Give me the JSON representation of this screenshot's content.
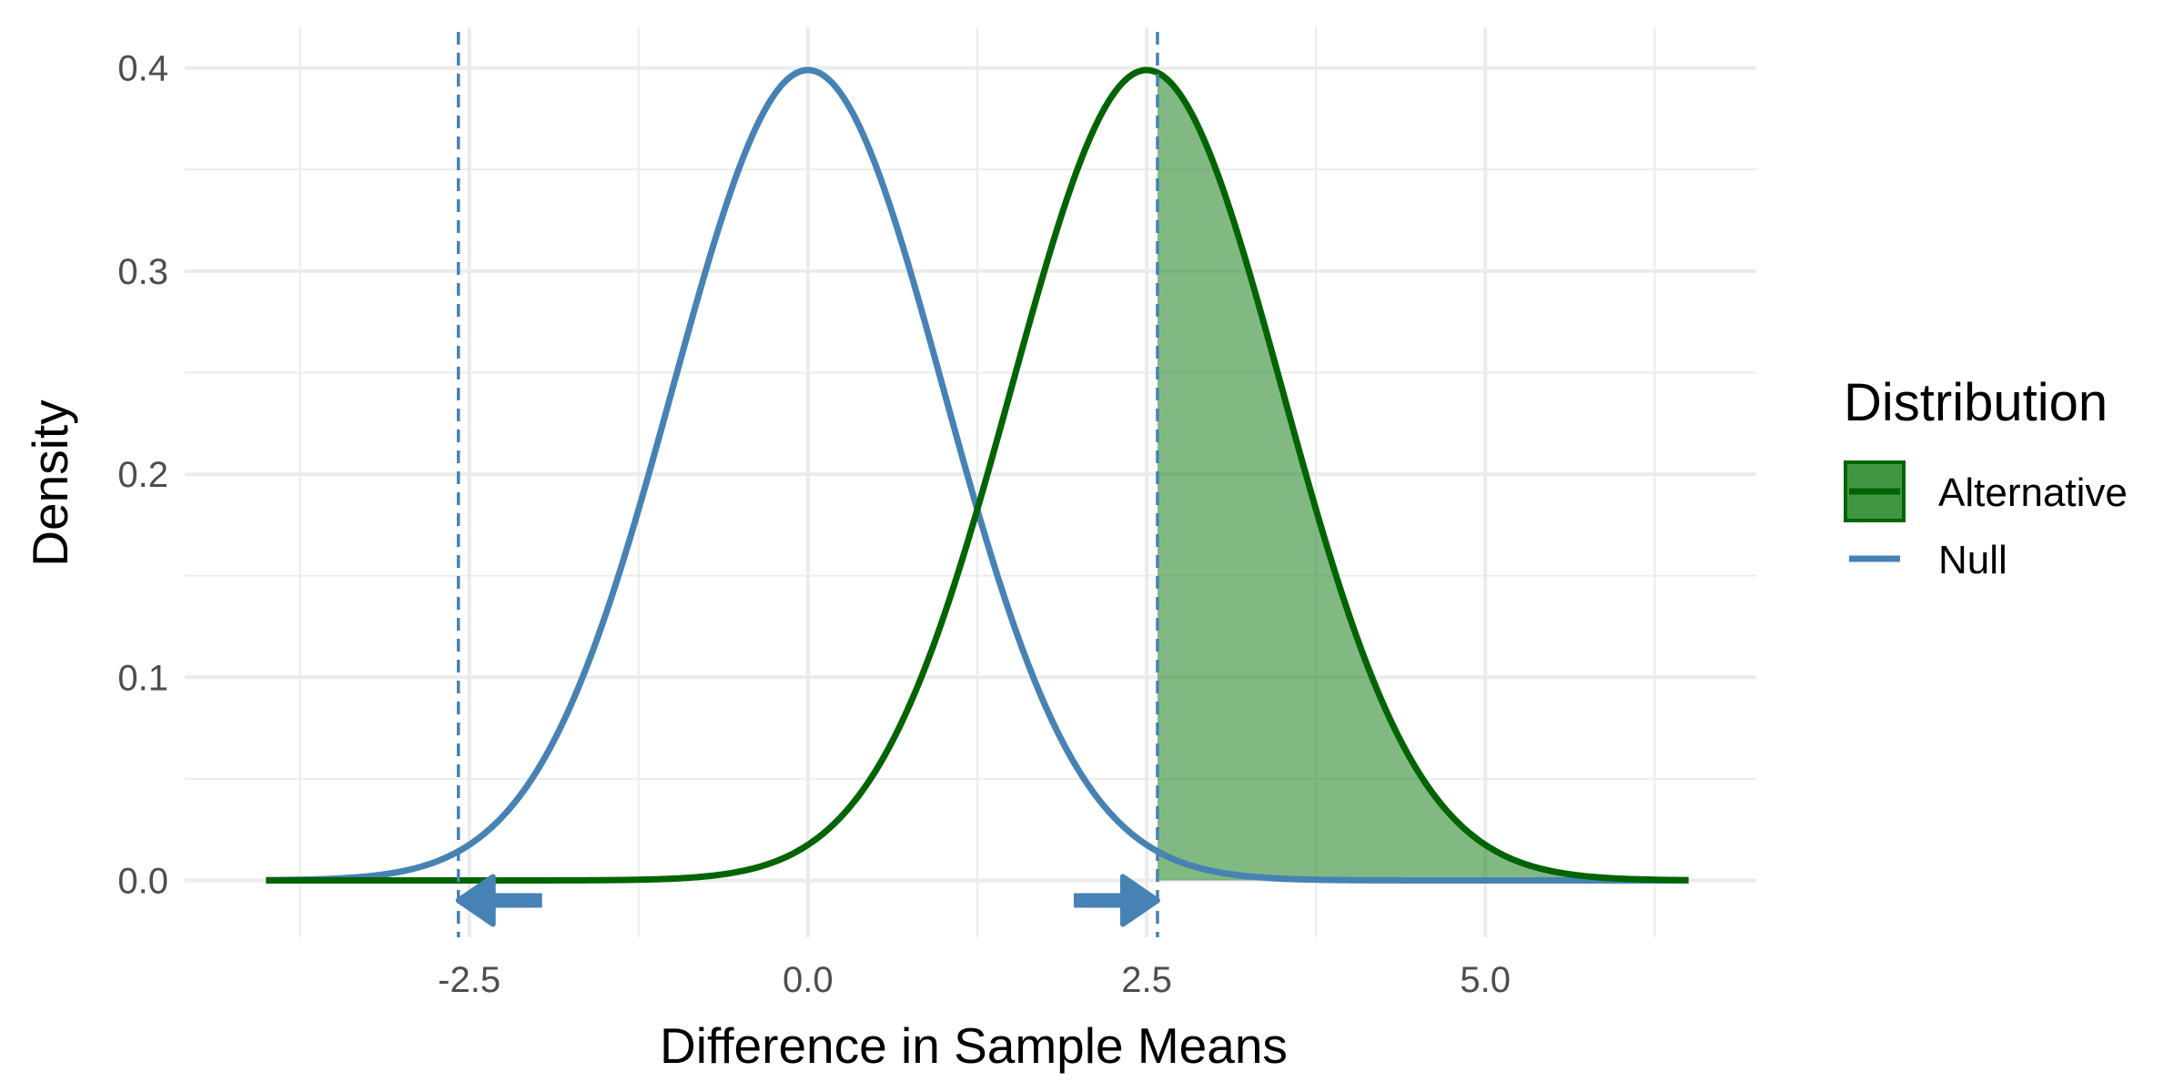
{
  "chart_data": {
    "type": "line",
    "title": "",
    "xlabel": "Difference in Sample Means",
    "ylabel": "Density",
    "xlim": [
      -4.6,
      7.0
    ],
    "ylim": [
      -0.028,
      0.42
    ],
    "x_ticks": [
      -2.5,
      0.0,
      2.5,
      5.0
    ],
    "x_tick_labels": [
      "-2.5",
      "0.0",
      "2.5",
      "5.0"
    ],
    "y_ticks": [
      0.0,
      0.1,
      0.2,
      0.3,
      0.4
    ],
    "y_tick_labels": [
      "0.0",
      "0.1",
      "0.2",
      "0.3",
      "0.4"
    ],
    "grid": true,
    "series": [
      {
        "name": "Null",
        "distribution": "normal",
        "mean": 0.0,
        "sd": 1.0,
        "x_range": [
          -4,
          6.5
        ],
        "color": "#4682B4"
      },
      {
        "name": "Alternative",
        "distribution": "normal",
        "mean": 2.5,
        "sd": 1.0,
        "x_range": [
          -4,
          6.5
        ],
        "color": "#006400"
      }
    ],
    "critical_values": [
      -2.58,
      2.58
    ],
    "shaded_region": {
      "series": "Alternative",
      "from": 2.58,
      "to": 6.5,
      "color": "#2E8B2E"
    },
    "arrows": [
      {
        "at": -2.58,
        "direction": "left"
      },
      {
        "at": 2.58,
        "direction": "right"
      }
    ],
    "legend": {
      "title": "Distribution",
      "position": "right",
      "entries": [
        {
          "label": "Alternative",
          "color": "#006400",
          "fill": "#2E8B2E"
        },
        {
          "label": "Null",
          "color": "#4682B4"
        }
      ]
    }
  }
}
